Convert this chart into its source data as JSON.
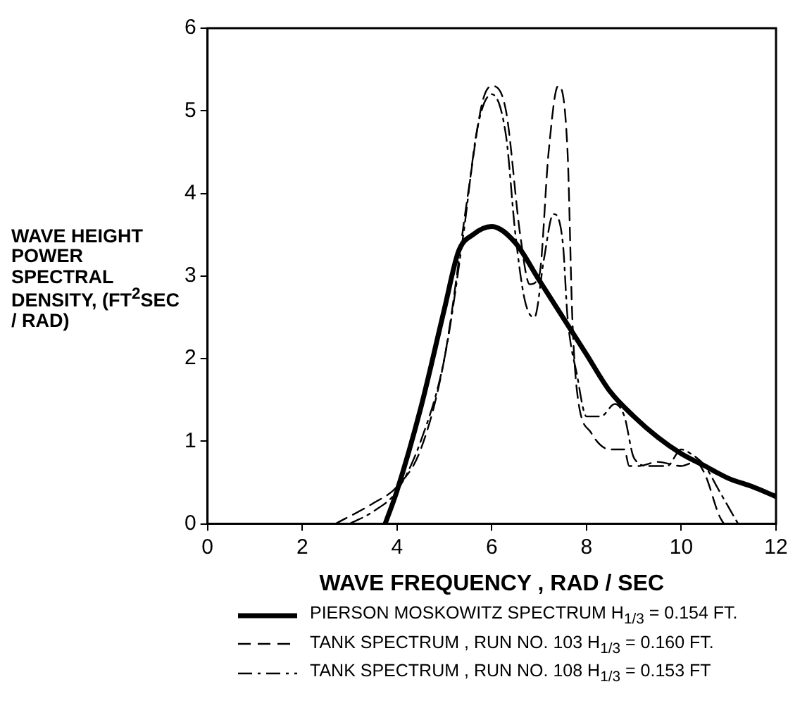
{
  "chart_data": {
    "type": "line",
    "xlabel": "WAVE FREQUENCY , RAD / SEC",
    "ylabel": "WAVE HEIGHT POWER SPECTRAL DENSITY, (FT$^{2}$SEC / RAD)",
    "xlim": [
      0,
      12
    ],
    "xticks": [
      0,
      2,
      4,
      6,
      8,
      10,
      12
    ],
    "ylim": [
      0,
      6
    ],
    "yticks": [
      0,
      1,
      2,
      3,
      4,
      5,
      6
    ],
    "grid": false,
    "legend": "bottom",
    "marker": "none",
    "series": [
      {
        "name": "PIERSON MOSKOWITZ SPECTRUM H$_{1/3}$ = 0.154 FT.",
        "color": "#000000",
        "line_style": "solid",
        "x": [
          3.75,
          4,
          4.5,
          5,
          5.3,
          5.6,
          6,
          6.5,
          7,
          7.5,
          8,
          8.5,
          9,
          9.5,
          10,
          10.5,
          11,
          11.5,
          12
        ],
        "values": [
          0,
          0.4,
          1.4,
          2.6,
          3.3,
          3.5,
          3.6,
          3.4,
          2.95,
          2.5,
          2.05,
          1.6,
          1.3,
          1.05,
          0.85,
          0.7,
          0.55,
          0.45,
          0.33
        ]
      },
      {
        "name": "TANK SPECTRUM , RUN NO. 103 H$_{1/3}$ = 0.160 FT.",
        "color": "#000000",
        "line_style": "dashed",
        "x": [
          2.7,
          3.5,
          4,
          4.5,
          5,
          5.5,
          5.8,
          6,
          6.3,
          6.6,
          6.8,
          7,
          7.2,
          7.4,
          7.6,
          7.7,
          7.8,
          8.1,
          8.5,
          8.8,
          8.9,
          9.1,
          9.5,
          10,
          10.3,
          10.5,
          10.8,
          10.9
        ],
        "values": [
          0,
          0.25,
          0.45,
          0.9,
          2,
          4,
          5.1,
          5.3,
          5,
          3.5,
          2.9,
          3,
          4.5,
          5.3,
          4.5,
          2.5,
          1.6,
          1.1,
          0.9,
          0.9,
          0.7,
          0.7,
          0.75,
          0.7,
          0.75,
          0.6,
          0.1,
          0
        ]
      },
      {
        "name": "TANK SPECTRUM , RUN NO. 108 H$_{1/3}$ = 0.153 FT",
        "color": "#000000",
        "line_style": "dashdot",
        "x": [
          3,
          3.5,
          4,
          4.5,
          5,
          5.4,
          5.7,
          6,
          6.3,
          6.5,
          6.7,
          6.9,
          7.1,
          7.3,
          7.5,
          7.6,
          7.8,
          8,
          8.3,
          8.6,
          8.8,
          9,
          9.3,
          9.7,
          10,
          10.2,
          10.5,
          10.8,
          11.1,
          11.2
        ],
        "values": [
          0,
          0.15,
          0.4,
          1,
          2,
          3.5,
          4.8,
          5.2,
          4.7,
          3.5,
          2.7,
          2.5,
          3.2,
          3.75,
          3.4,
          2.5,
          1.8,
          1.3,
          1.3,
          1.45,
          1.3,
          0.8,
          0.7,
          0.7,
          0.9,
          0.85,
          0.7,
          0.4,
          0.1,
          0
        ]
      }
    ]
  }
}
